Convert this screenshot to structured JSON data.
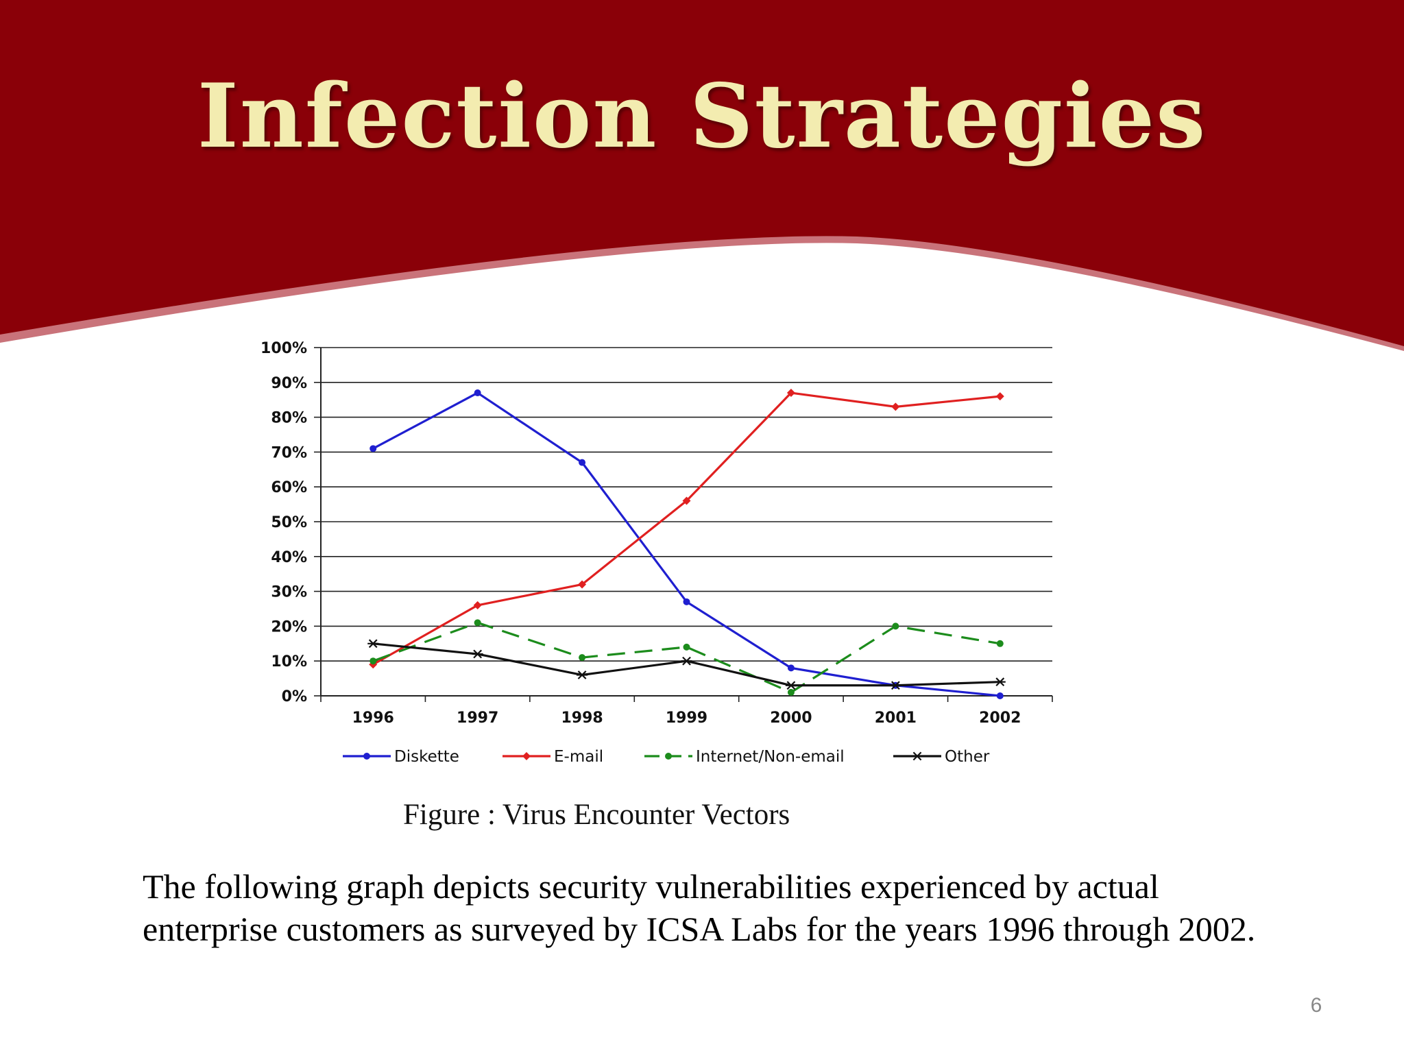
{
  "slide": {
    "title": "Infection Strategies",
    "figure_caption": "Figure : Virus Encounter Vectors",
    "body_text": "The following graph depicts security vulnerabilities experienced by actual enterprise customers as surveyed by ICSA Labs for the years 1996 through 2002.",
    "page_number": "6",
    "colors": {
      "header_red": "#8a0008",
      "header_edge": "#c9737a",
      "title_text": "#f3ecb0"
    }
  },
  "chart_data": {
    "type": "line",
    "title": "",
    "xlabel": "",
    "ylabel": "",
    "x": [
      "1996",
      "1997",
      "1998",
      "1999",
      "2000",
      "2001",
      "2002"
    ],
    "ylim": [
      0,
      100
    ],
    "yticks": [
      0,
      10,
      20,
      30,
      40,
      50,
      60,
      70,
      80,
      90,
      100
    ],
    "ytick_labels": [
      "0%",
      "10%",
      "20%",
      "30%",
      "40%",
      "50%",
      "60%",
      "70%",
      "80%",
      "90%",
      "100%"
    ],
    "grid": true,
    "legend_position": "bottom",
    "series": [
      {
        "name": "Diskette",
        "values": [
          71,
          87,
          67,
          27,
          8,
          3,
          0
        ],
        "color": "#1f1fd0",
        "dash": "solid",
        "marker": "dot"
      },
      {
        "name": "E-mail",
        "values": [
          9,
          26,
          32,
          56,
          87,
          83,
          86
        ],
        "color": "#e02020",
        "dash": "solid",
        "marker": "diamond"
      },
      {
        "name": "Internet/Non-email",
        "values": [
          10,
          21,
          11,
          14,
          1,
          20,
          15
        ],
        "color": "#1c8c1c",
        "dash": "dashed",
        "marker": "dot"
      },
      {
        "name": "Other",
        "values": [
          15,
          12,
          6,
          10,
          3,
          3,
          4
        ],
        "color": "#111111",
        "dash": "solid",
        "marker": "star"
      }
    ]
  }
}
